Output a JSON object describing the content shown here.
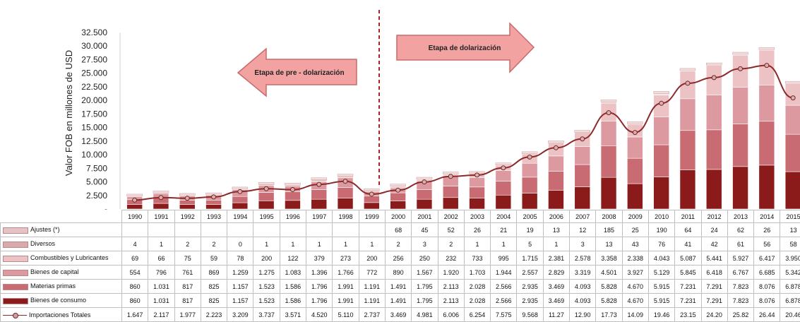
{
  "chart_data": {
    "type": "bar",
    "stacked": true,
    "ylabel": "Valor FOB en millones de USD",
    "ylim": [
      0,
      32500
    ],
    "yticks": [
      "32.500",
      "30.000",
      "27.500",
      "25.000",
      "22.500",
      "20.000",
      "17.500",
      "15.000",
      "12.500",
      "10.000",
      "7.500",
      "5.000",
      "2.500",
      "-"
    ],
    "categories": [
      "1990",
      "1991",
      "1992",
      "1993",
      "1994",
      "1995",
      "1996",
      "1997",
      "1998",
      "1999",
      "2000",
      "2001",
      "2002",
      "2003",
      "2004",
      "2005",
      "2006",
      "2007",
      "2008",
      "2009",
      "2010",
      "2011",
      "2012",
      "2013",
      "2014",
      "2015"
    ],
    "series": [
      {
        "name": "Bienes de consumo",
        "color": "#8b1a1a",
        "labels": [
          "860",
          "1.031",
          "817",
          "825",
          "1.157",
          "1.523",
          "1.586",
          "1.796",
          "1.991",
          "1.191",
          "1.491",
          "1.795",
          "2.113",
          "2.028",
          "2.566",
          "2.935",
          "3.469",
          "4.093",
          "5.828",
          "4.670",
          "5.915",
          "7.231",
          "7.291",
          "7.823",
          "8.076",
          "6.878"
        ],
        "values": [
          860,
          1031,
          817,
          825,
          1157,
          1523,
          1586,
          1796,
          1991,
          1191,
          1491,
          1795,
          2113,
          2028,
          2566,
          2935,
          3469,
          4093,
          5828,
          4670,
          5915,
          7231,
          7291,
          7823,
          8076,
          6878
        ]
      },
      {
        "name": "Materias primas",
        "color": "#c96b72",
        "labels": [
          "860",
          "1.031",
          "817",
          "825",
          "1.157",
          "1.523",
          "1.586",
          "1.796",
          "1.991",
          "1.191",
          "1.491",
          "1.795",
          "2.113",
          "2.028",
          "2.566",
          "2.935",
          "3.469",
          "4.093",
          "5.828",
          "4.670",
          "5.915",
          "7.231",
          "7.291",
          "7.823",
          "8.076",
          "6.878"
        ],
        "values": [
          860,
          1031,
          817,
          825,
          1157,
          1523,
          1586,
          1796,
          1991,
          1191,
          1491,
          1795,
          2113,
          2028,
          2566,
          2935,
          3469,
          4093,
          5828,
          4670,
          5915,
          7231,
          7291,
          7823,
          8076,
          6878
        ]
      },
      {
        "name": "Bienes de capital",
        "color": "#dc9aa0",
        "labels": [
          "554",
          "796",
          "761",
          "869",
          "1.259",
          "1.275",
          "1.083",
          "1.396",
          "1.766",
          "772",
          "890",
          "1.567",
          "1.920",
          "1.703",
          "1.944",
          "2.557",
          "2.829",
          "3.319",
          "4.501",
          "3.927",
          "5.129",
          "5.845",
          "6.418",
          "6.767",
          "6.685",
          "5.342"
        ],
        "values": [
          554,
          796,
          761,
          869,
          1259,
          1275,
          1083,
          1396,
          1766,
          772,
          890,
          1567,
          1920,
          1703,
          1944,
          2557,
          2829,
          3319,
          4501,
          3927,
          5129,
          5845,
          6418,
          6767,
          6685,
          5342
        ]
      },
      {
        "name": "Combustibles y Lubricantes",
        "color": "#ecc2c5",
        "labels": [
          "69",
          "66",
          "75",
          "59",
          "78",
          "200",
          "122",
          "379",
          "273",
          "200",
          "256",
          "250",
          "232",
          "733",
          "995",
          "1.715",
          "2.381",
          "2.578",
          "3.358",
          "2.338",
          "4.043",
          "5.087",
          "5.441",
          "5.927",
          "6.417",
          "3.950"
        ],
        "values": [
          69,
          66,
          75,
          59,
          78,
          200,
          122,
          379,
          273,
          200,
          256,
          250,
          232,
          733,
          995,
          1715,
          2381,
          2578,
          3358,
          2338,
          4043,
          5087,
          5441,
          5927,
          6417,
          3950
        ]
      },
      {
        "name": "Diversos",
        "color": "#d8a9ad",
        "labels": [
          "4",
          "1",
          "2",
          "2",
          "0",
          "1",
          "1",
          "1",
          "1",
          "1",
          "2",
          "3",
          "2",
          "1",
          "1",
          "5",
          "1",
          "3",
          "13",
          "43",
          "76",
          "41",
          "42",
          "61",
          "56",
          "58"
        ],
        "values": [
          4,
          1,
          2,
          2,
          0,
          1,
          1,
          1,
          1,
          1,
          2,
          3,
          2,
          1,
          1,
          5,
          1,
          3,
          13,
          43,
          76,
          41,
          42,
          61,
          56,
          58
        ]
      },
      {
        "name": "Ajustes (*)",
        "color": "#e6c3c6",
        "labels": [
          "",
          "",
          "",
          "",
          "",
          "",
          "",
          "",
          "",
          "",
          "68",
          "45",
          "52",
          "26",
          "21",
          "19",
          "13",
          "12",
          "185",
          "25",
          "190",
          "64",
          "24",
          "62",
          "26",
          "13"
        ],
        "values": [
          0,
          0,
          0,
          0,
          0,
          0,
          0,
          0,
          0,
          0,
          68,
          45,
          52,
          26,
          21,
          19,
          13,
          12,
          185,
          25,
          190,
          64,
          24,
          62,
          26,
          13
        ]
      }
    ],
    "line": {
      "name": "Importaciones Totales",
      "color": "#8b2a2a",
      "labels": [
        "1.647",
        "2.117",
        "1.977",
        "2.223",
        "3.209",
        "3.737",
        "3.571",
        "4.520",
        "5.110",
        "2.737",
        "3.469",
        "4.981",
        "6.006",
        "6.254",
        "7.575",
        "9.568",
        "11.27",
        "12.90",
        "17.73",
        "14.09",
        "19.46",
        "23.15",
        "24.20",
        "25.82",
        "26.44",
        "20.46"
      ],
      "values": [
        1647,
        2117,
        1977,
        2223,
        3209,
        3737,
        3571,
        4520,
        5110,
        2737,
        3469,
        4981,
        6006,
        6254,
        7575,
        9568,
        11270,
        12900,
        17730,
        14090,
        19460,
        23150,
        24200,
        25820,
        26440,
        20460
      ]
    },
    "annotations": [
      {
        "text": "Etapa de pre - dolarización",
        "direction": "left"
      },
      {
        "text": "Etapa de dolarización",
        "direction": "right"
      }
    ],
    "divider_between": [
      "1999",
      "2000"
    ],
    "grid": false
  }
}
